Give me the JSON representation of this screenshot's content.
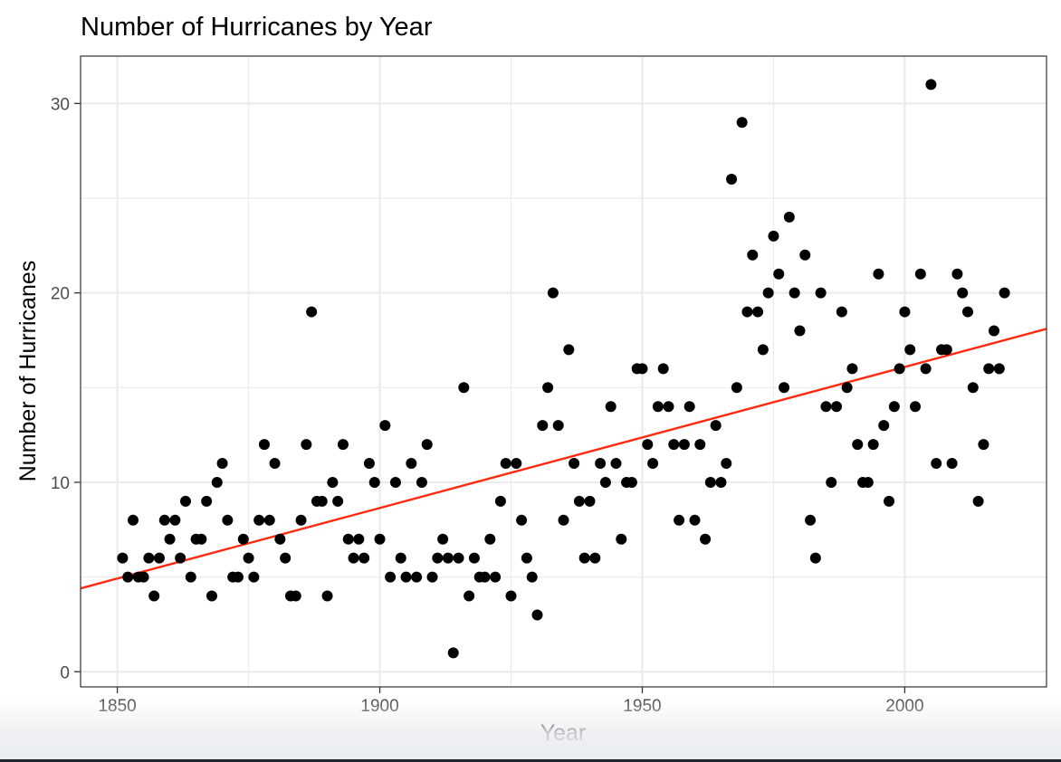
{
  "chart_data": {
    "type": "scatter",
    "title": "Number of Hurricanes by Year",
    "xlabel": "Year",
    "ylabel": "Number of Hurricanes",
    "xlim": [
      1843,
      2027
    ],
    "ylim": [
      -0.8,
      32.5
    ],
    "x_ticks": [
      1850,
      1900,
      1950,
      2000
    ],
    "y_ticks": [
      0,
      10,
      20,
      30
    ],
    "grid": true,
    "legend": "none",
    "colors": {
      "points": "#000000",
      "trend": "#ff2a0f",
      "grid": "#ebebeb",
      "panel_border": "#333333"
    },
    "trend_line": {
      "x": [
        1843,
        2027
      ],
      "y": [
        4.4,
        18.1
      ]
    },
    "points": [
      [
        1851,
        6
      ],
      [
        1852,
        5
      ],
      [
        1853,
        8
      ],
      [
        1854,
        5
      ],
      [
        1855,
        5
      ],
      [
        1856,
        6
      ],
      [
        1857,
        4
      ],
      [
        1858,
        6
      ],
      [
        1859,
        8
      ],
      [
        1860,
        7
      ],
      [
        1861,
        8
      ],
      [
        1862,
        6
      ],
      [
        1863,
        9
      ],
      [
        1864,
        5
      ],
      [
        1865,
        7
      ],
      [
        1866,
        7
      ],
      [
        1867,
        9
      ],
      [
        1868,
        4
      ],
      [
        1869,
        10
      ],
      [
        1870,
        11
      ],
      [
        1871,
        8
      ],
      [
        1872,
        5
      ],
      [
        1873,
        5
      ],
      [
        1874,
        7
      ],
      [
        1875,
        6
      ],
      [
        1876,
        5
      ],
      [
        1877,
        8
      ],
      [
        1878,
        12
      ],
      [
        1879,
        8
      ],
      [
        1880,
        11
      ],
      [
        1881,
        7
      ],
      [
        1882,
        6
      ],
      [
        1883,
        4
      ],
      [
        1884,
        4
      ],
      [
        1885,
        8
      ],
      [
        1886,
        12
      ],
      [
        1887,
        19
      ],
      [
        1888,
        9
      ],
      [
        1889,
        9
      ],
      [
        1890,
        4
      ],
      [
        1891,
        10
      ],
      [
        1892,
        9
      ],
      [
        1893,
        12
      ],
      [
        1894,
        7
      ],
      [
        1895,
        6
      ],
      [
        1896,
        7
      ],
      [
        1897,
        6
      ],
      [
        1898,
        11
      ],
      [
        1899,
        10
      ],
      [
        1900,
        7
      ],
      [
        1901,
        13
      ],
      [
        1902,
        5
      ],
      [
        1903,
        10
      ],
      [
        1904,
        6
      ],
      [
        1905,
        5
      ],
      [
        1906,
        11
      ],
      [
        1907,
        5
      ],
      [
        1908,
        10
      ],
      [
        1909,
        12
      ],
      [
        1910,
        5
      ],
      [
        1911,
        6
      ],
      [
        1912,
        7
      ],
      [
        1913,
        6
      ],
      [
        1914,
        1
      ],
      [
        1915,
        6
      ],
      [
        1916,
        15
      ],
      [
        1917,
        4
      ],
      [
        1918,
        6
      ],
      [
        1919,
        5
      ],
      [
        1920,
        5
      ],
      [
        1921,
        7
      ],
      [
        1922,
        5
      ],
      [
        1923,
        9
      ],
      [
        1924,
        11
      ],
      [
        1925,
        4
      ],
      [
        1926,
        11
      ],
      [
        1927,
        8
      ],
      [
        1928,
        6
      ],
      [
        1929,
        5
      ],
      [
        1930,
        3
      ],
      [
        1931,
        13
      ],
      [
        1932,
        15
      ],
      [
        1933,
        20
      ],
      [
        1934,
        13
      ],
      [
        1935,
        8
      ],
      [
        1936,
        17
      ],
      [
        1937,
        11
      ],
      [
        1938,
        9
      ],
      [
        1939,
        6
      ],
      [
        1940,
        9
      ],
      [
        1941,
        6
      ],
      [
        1942,
        11
      ],
      [
        1943,
        10
      ],
      [
        1944,
        14
      ],
      [
        1945,
        11
      ],
      [
        1946,
        7
      ],
      [
        1947,
        10
      ],
      [
        1948,
        10
      ],
      [
        1949,
        16
      ],
      [
        1950,
        16
      ],
      [
        1951,
        12
      ],
      [
        1952,
        11
      ],
      [
        1953,
        14
      ],
      [
        1954,
        16
      ],
      [
        1955,
        14
      ],
      [
        1956,
        12
      ],
      [
        1957,
        8
      ],
      [
        1958,
        12
      ],
      [
        1959,
        14
      ],
      [
        1960,
        8
      ],
      [
        1961,
        12
      ],
      [
        1962,
        7
      ],
      [
        1963,
        10
      ],
      [
        1964,
        13
      ],
      [
        1965,
        10
      ],
      [
        1966,
        11
      ],
      [
        1967,
        26
      ],
      [
        1968,
        15
      ],
      [
        1969,
        29
      ],
      [
        1970,
        19
      ],
      [
        1971,
        22
      ],
      [
        1972,
        19
      ],
      [
        1973,
        17
      ],
      [
        1974,
        20
      ],
      [
        1975,
        23
      ],
      [
        1976,
        21
      ],
      [
        1977,
        15
      ],
      [
        1978,
        24
      ],
      [
        1979,
        20
      ],
      [
        1980,
        18
      ],
      [
        1981,
        22
      ],
      [
        1982,
        8
      ],
      [
        1983,
        6
      ],
      [
        1984,
        20
      ],
      [
        1985,
        14
      ],
      [
        1986,
        10
      ],
      [
        1987,
        14
      ],
      [
        1988,
        19
      ],
      [
        1989,
        15
      ],
      [
        1990,
        16
      ],
      [
        1991,
        12
      ],
      [
        1992,
        10
      ],
      [
        1993,
        10
      ],
      [
        1994,
        12
      ],
      [
        1995,
        21
      ],
      [
        1996,
        13
      ],
      [
        1997,
        9
      ],
      [
        1998,
        14
      ],
      [
        1999,
        16
      ],
      [
        2000,
        19
      ],
      [
        2001,
        17
      ],
      [
        2002,
        14
      ],
      [
        2003,
        21
      ],
      [
        2004,
        16
      ],
      [
        2005,
        31
      ],
      [
        2006,
        11
      ],
      [
        2007,
        17
      ],
      [
        2008,
        17
      ],
      [
        2009,
        11
      ],
      [
        2010,
        21
      ],
      [
        2011,
        20
      ],
      [
        2012,
        19
      ],
      [
        2013,
        15
      ],
      [
        2014,
        9
      ],
      [
        2015,
        12
      ],
      [
        2016,
        16
      ],
      [
        2017,
        18
      ],
      [
        2018,
        16
      ],
      [
        2019,
        20
      ]
    ]
  }
}
